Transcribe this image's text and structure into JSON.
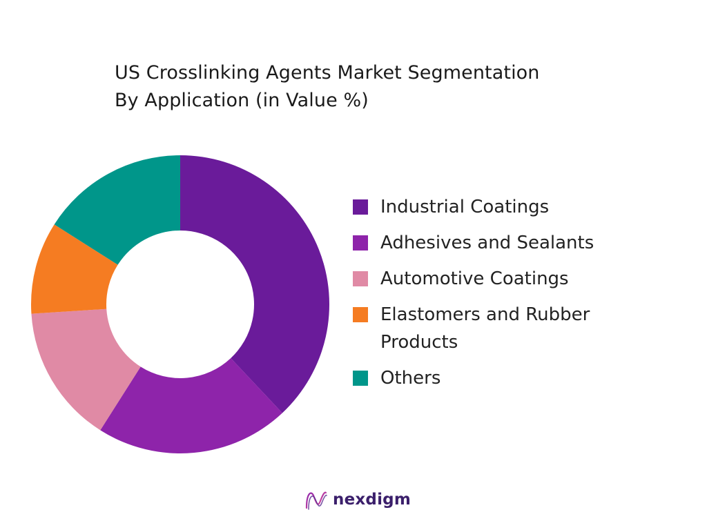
{
  "chart_data": {
    "type": "pie",
    "variant": "donut",
    "title_lines": [
      "US Crosslinking Agents Market Segmentation",
      "By Application (in Value %)"
    ],
    "unit": "%",
    "categories": [
      "Industrial Coatings",
      "Adhesives and Sealants",
      "Automotive Coatings",
      "Elastomers and Rubber Products",
      "Others"
    ],
    "values": [
      38,
      21,
      15,
      10,
      16
    ],
    "colors": [
      "#6a1b9a",
      "#8e24aa",
      "#e08aa5",
      "#f57c22",
      "#00968a"
    ],
    "legend_position": "right",
    "data_labels_shown": false
  },
  "legend": {
    "items": [
      {
        "label": "Industrial Coatings",
        "color": "#6a1b9a"
      },
      {
        "label": "Adhesives and Sealants",
        "color": "#8e24aa"
      },
      {
        "label": "Automotive Coatings",
        "color": "#e08aa5"
      },
      {
        "label": "Elastomers and Rubber Products",
        "color": "#f57c22"
      },
      {
        "label": "Others",
        "color": "#00968a"
      }
    ]
  },
  "branding": {
    "logo_text": "nexdigm",
    "logo_icon": "nexdigm-wave-icon"
  }
}
